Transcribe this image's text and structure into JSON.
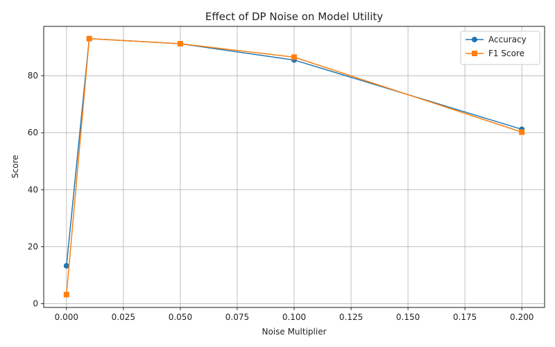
{
  "chart_data": {
    "type": "line",
    "title": "Effect of DP Noise on Model Utility",
    "xlabel": "Noise Multiplier",
    "ylabel": "Score",
    "x": [
      0.0,
      0.01,
      0.05,
      0.1,
      0.2
    ],
    "series": [
      {
        "name": "Accuracy",
        "values": [
          13.3,
          93.0,
          91.2,
          85.5,
          61.2
        ],
        "color": "#1f77b4",
        "marker": "circle"
      },
      {
        "name": "F1 Score",
        "values": [
          3.2,
          93.0,
          91.2,
          86.5,
          60.2
        ],
        "color": "#ff7f0e",
        "marker": "square"
      }
    ],
    "xlim": [
      -0.01,
      0.21
    ],
    "ylim": [
      -1.3,
      97.3
    ],
    "xticks": [
      0.0,
      0.025,
      0.05,
      0.075,
      0.1,
      0.125,
      0.15,
      0.175,
      0.2
    ],
    "xtick_labels": [
      "0.000",
      "0.025",
      "0.050",
      "0.075",
      "0.100",
      "0.125",
      "0.150",
      "0.175",
      "0.200"
    ],
    "yticks": [
      0,
      20,
      40,
      60,
      80
    ],
    "ytick_labels": [
      "0",
      "20",
      "40",
      "60",
      "80"
    ],
    "grid": true,
    "legend_position": "top-right"
  }
}
